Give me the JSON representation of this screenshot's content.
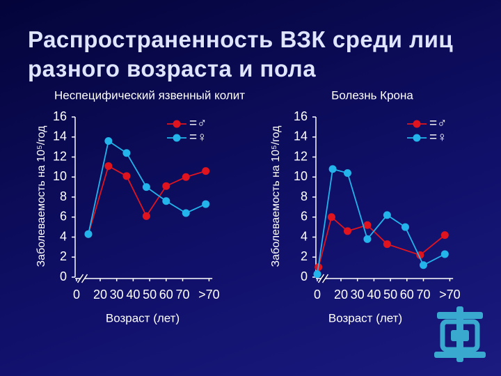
{
  "slide_title": "Распространенность ВЗК среди лиц разного возраста и пола",
  "chart_data": [
    {
      "type": "line",
      "title": "Неспецифический язвенный колит",
      "y_label": "Заболеваемость на 10⁵/год",
      "x_label": "Возраст (лет)",
      "x": [
        10,
        25,
        36,
        48,
        60,
        72,
        84
      ],
      "xlim": [
        0,
        88
      ],
      "xticks": [
        0,
        20,
        30,
        40,
        50,
        60,
        70,
        {
          "value": 86,
          "label": ">70"
        }
      ],
      "ylim": [
        0,
        16
      ],
      "yticks": [
        0,
        2,
        4,
        6,
        8,
        10,
        12,
        14,
        16
      ],
      "grid": false,
      "series": [
        {
          "name": "=♂",
          "color": "#e0141e",
          "values": [
            4.3,
            11.1,
            10.1,
            6.1,
            9.1,
            10.0,
            10.6
          ]
        },
        {
          "name": "=♀",
          "color": "#22b4ea",
          "values": [
            4.3,
            13.6,
            12.4,
            9.0,
            7.6,
            6.4,
            7.3
          ]
        }
      ]
    },
    {
      "type": "line",
      "title": "Болезнь Крона",
      "y_label": "Заболеваемость на 10⁵/год",
      "x_label": "Возраст (лет)",
      "xlim": [
        0,
        88
      ],
      "xticks": [
        0,
        20,
        30,
        40,
        50,
        60,
        70,
        {
          "value": 86,
          "label": ">70"
        }
      ],
      "ylim": [
        0,
        16
      ],
      "yticks": [
        0,
        2,
        4,
        6,
        8,
        10,
        12,
        14,
        16
      ],
      "grid": false,
      "series": [
        {
          "name": "=♂",
          "color": "#e0141e",
          "x": [
            1,
            12,
            24,
            36,
            48,
            68,
            83
          ],
          "values": [
            1.0,
            6.0,
            4.6,
            5.2,
            3.3,
            2.2,
            4.2
          ]
        },
        {
          "name": "=♀",
          "color": "#22b4ea",
          "x": [
            0,
            13,
            24,
            36,
            48,
            59,
            70,
            83
          ],
          "values": [
            0.3,
            10.8,
            10.4,
            3.8,
            6.2,
            5.0,
            1.2,
            2.3
          ]
        }
      ]
    }
  ]
}
